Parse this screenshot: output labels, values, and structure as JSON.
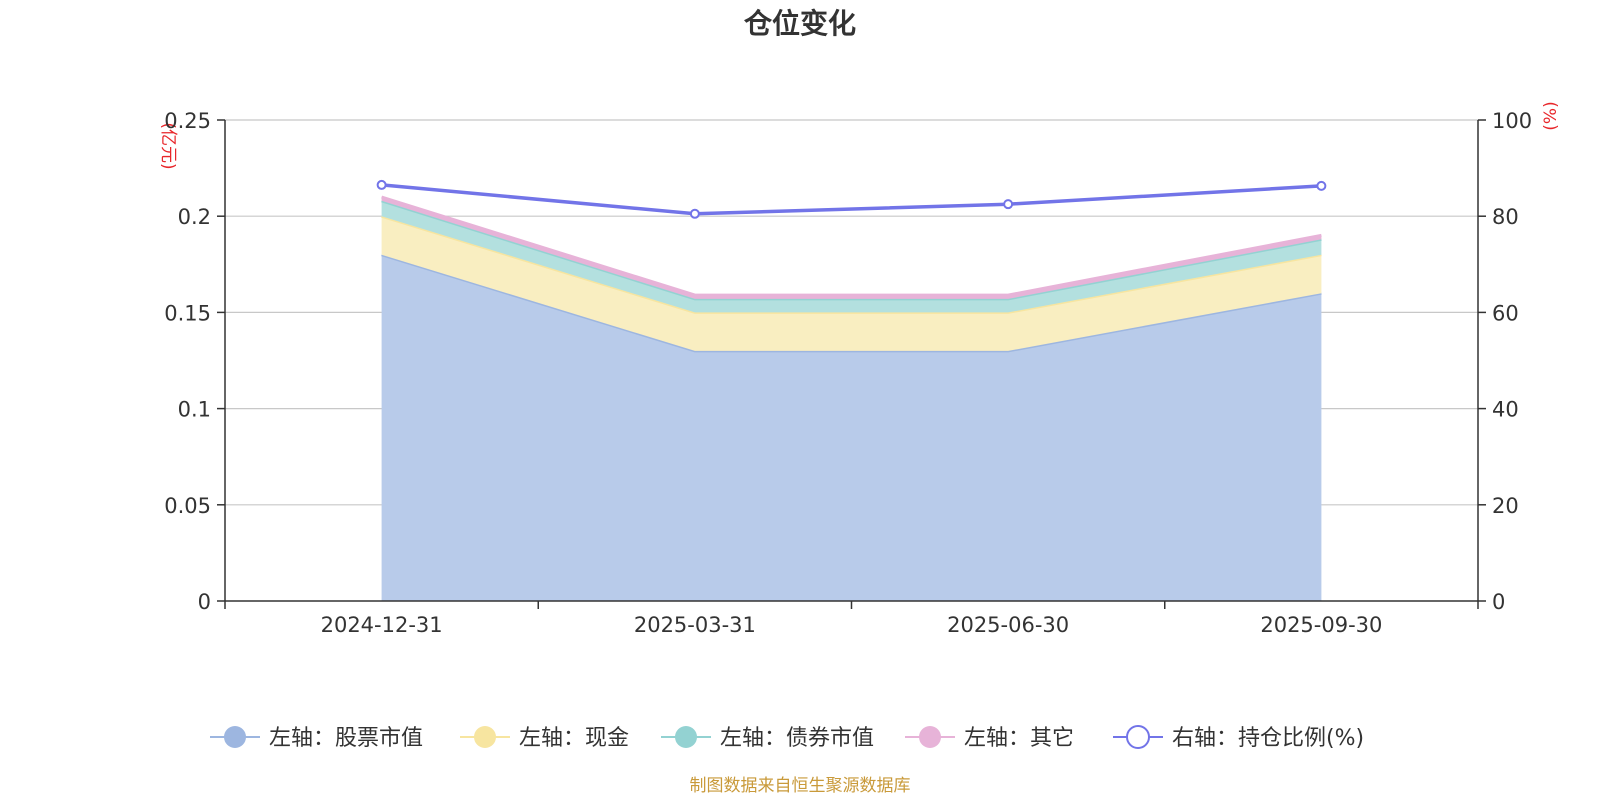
{
  "chart_data": {
    "type": "area",
    "title": "仓位变化",
    "left_unit": "(亿元)",
    "right_unit": "(%)",
    "categories": [
      "2024-12-31",
      "2025-03-31",
      "2025-06-30",
      "2025-09-30"
    ],
    "left_axis": {
      "min": 0,
      "max": 0.25,
      "ticks": [
        "0",
        "0.05",
        "0.1",
        "0.15",
        "0.2",
        "0.25"
      ],
      "tick_values": [
        0,
        0.05,
        0.1,
        0.15,
        0.2,
        0.25
      ]
    },
    "right_axis": {
      "min": 0,
      "max": 100,
      "ticks": [
        "0",
        "20",
        "40",
        "60",
        "80",
        "100"
      ],
      "tick_values": [
        0,
        20,
        40,
        60,
        80,
        100
      ]
    },
    "series": [
      {
        "name": "左轴：股票市值",
        "axis": "left",
        "stacked": true,
        "color": "#9db6e0",
        "fill": "#b8cbea",
        "values": [
          0.18,
          0.13,
          0.13,
          0.16
        ]
      },
      {
        "name": "左轴：现金",
        "axis": "left",
        "stacked": true,
        "color": "#f7e5a0",
        "fill": "#f9eec1",
        "values": [
          0.02,
          0.02,
          0.02,
          0.02
        ]
      },
      {
        "name": "左轴：债券市值",
        "axis": "left",
        "stacked": true,
        "color": "#93d2d2",
        "fill": "#b3e0df",
        "values": [
          0.008,
          0.007,
          0.007,
          0.008
        ]
      },
      {
        "name": "左轴：其它",
        "axis": "left",
        "stacked": true,
        "color": "#e7b3d8",
        "fill": "#e7b3d8",
        "values": [
          0.002,
          0.002,
          0.002,
          0.002
        ]
      },
      {
        "name": "右轴：持仓比例(%)",
        "axis": "right",
        "stacked": false,
        "color": "#7274e8",
        "fill": "none",
        "values": [
          86.5,
          80.5,
          82.5,
          86.3
        ]
      }
    ],
    "grid": true,
    "legend_position": "bottom",
    "source": "制图数据来自恒生聚源数据库",
    "colors": {
      "unit": "#e8262a",
      "source": "#c99a3a",
      "axis": "#333333",
      "grid": "#c8c8c8"
    }
  }
}
